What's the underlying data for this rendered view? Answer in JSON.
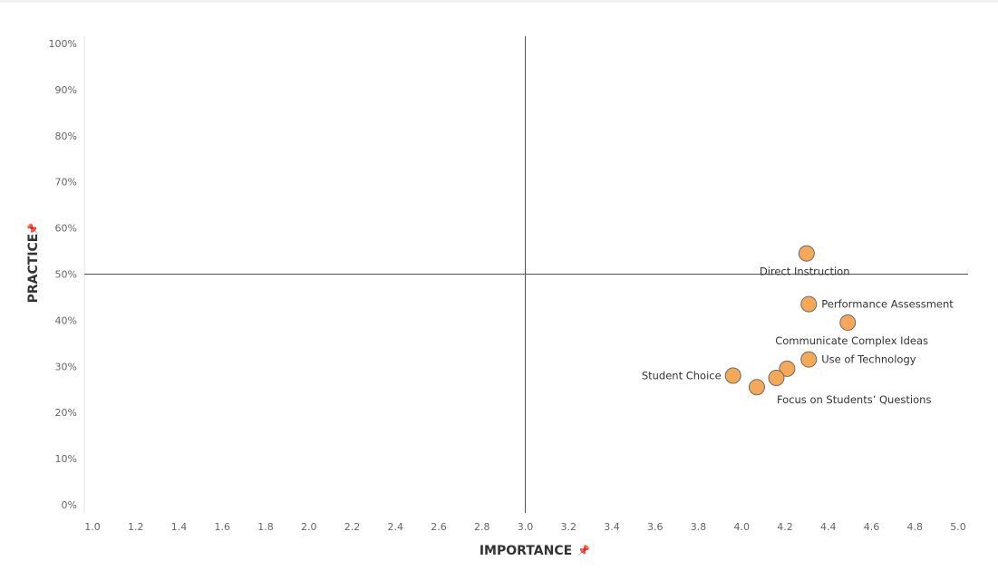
{
  "chart_data": {
    "type": "scatter",
    "xlabel": "IMPORTANCE",
    "ylabel": "PRACTICE",
    "xlim": [
      1.0,
      5.0
    ],
    "ylim": [
      0,
      100
    ],
    "x_ticks": [
      "1.0",
      "1.2",
      "1.4",
      "1.6",
      "1.8",
      "2.0",
      "2.2",
      "2.4",
      "2.6",
      "2.8",
      "3.0",
      "3.2",
      "3.4",
      "3.6",
      "3.8",
      "4.0",
      "4.2",
      "4.4",
      "4.6",
      "4.8",
      "5.0"
    ],
    "y_ticks": [
      "0%",
      "10%",
      "20%",
      "30%",
      "40%",
      "50%",
      "60%",
      "70%",
      "80%",
      "90%",
      "100%"
    ],
    "reference_lines": {
      "x": 3.0,
      "y": 50
    },
    "marker_color": "#f5a858",
    "marker_edge_color": "#6b6b6b",
    "points": [
      {
        "label": "Direct Instruction",
        "x": 4.3,
        "y": 54.5,
        "label_pos": "below"
      },
      {
        "label": "Performance Assessment",
        "x": 4.31,
        "y": 43.5,
        "label_pos": "right"
      },
      {
        "label": "Communicate Complex Ideas",
        "x": 4.49,
        "y": 39.5,
        "label_pos": "below"
      },
      {
        "label": "Use of Technology",
        "x": 4.31,
        "y": 31.5,
        "label_pos": "right"
      },
      {
        "label": "Student Choice",
        "x": 3.96,
        "y": 28.0,
        "label_pos": "left"
      },
      {
        "label": "",
        "x": 4.21,
        "y": 29.5,
        "label_pos": "none"
      },
      {
        "label": "",
        "x": 4.16,
        "y": 27.5,
        "label_pos": "none"
      },
      {
        "label": "Focus on Students’ Questions",
        "x": 4.07,
        "y": 25.5,
        "label_pos": "below"
      }
    ]
  }
}
